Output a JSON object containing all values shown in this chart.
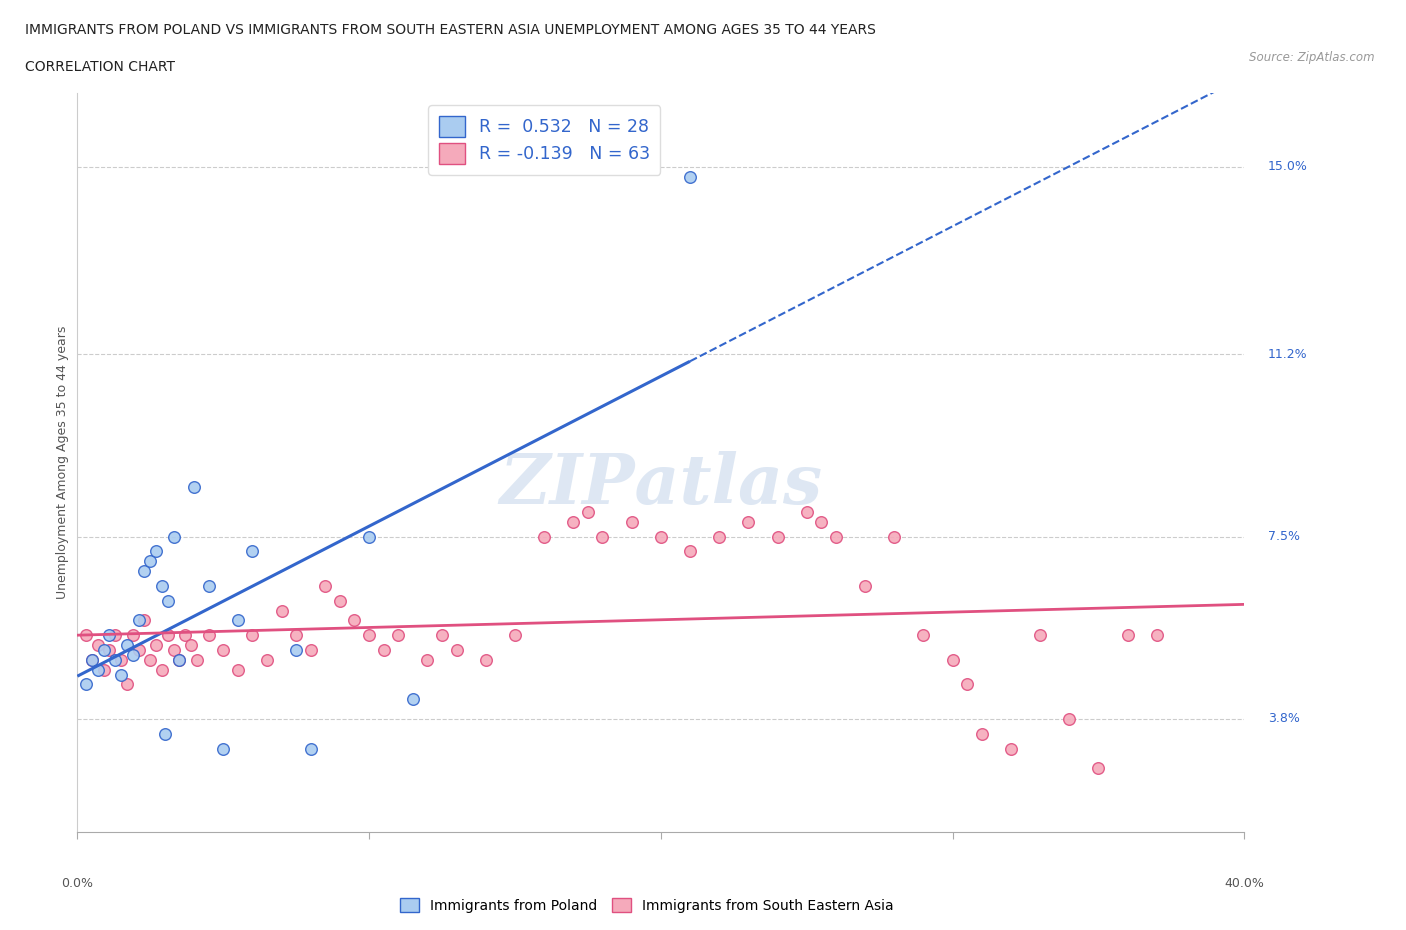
{
  "title_line1": "IMMIGRANTS FROM POLAND VS IMMIGRANTS FROM SOUTH EASTERN ASIA UNEMPLOYMENT AMONG AGES 35 TO 44 YEARS",
  "title_line2": "CORRELATION CHART",
  "source": "Source: ZipAtlas.com",
  "ylabel": "Unemployment Among Ages 35 to 44 years",
  "yticks": [
    3.8,
    7.5,
    11.2,
    15.0
  ],
  "xlim": [
    0.0,
    40.0
  ],
  "ylim": [
    1.5,
    16.5
  ],
  "watermark": "ZIPatlas",
  "poland_color": "#aaccf0",
  "sea_color": "#f5aabb",
  "poland_line_color": "#3366cc",
  "sea_line_color": "#e05080",
  "poland_scatter": [
    [
      0.3,
      4.5
    ],
    [
      0.5,
      5.0
    ],
    [
      0.7,
      4.8
    ],
    [
      0.9,
      5.2
    ],
    [
      1.1,
      5.5
    ],
    [
      1.3,
      5.0
    ],
    [
      1.5,
      4.7
    ],
    [
      1.7,
      5.3
    ],
    [
      1.9,
      5.1
    ],
    [
      2.1,
      5.8
    ],
    [
      2.3,
      6.8
    ],
    [
      2.5,
      7.0
    ],
    [
      2.7,
      7.2
    ],
    [
      2.9,
      6.5
    ],
    [
      3.1,
      6.2
    ],
    [
      3.3,
      7.5
    ],
    [
      3.5,
      5.0
    ],
    [
      4.0,
      8.5
    ],
    [
      4.5,
      6.5
    ],
    [
      5.5,
      5.8
    ],
    [
      6.0,
      7.2
    ],
    [
      7.5,
      5.2
    ],
    [
      8.0,
      3.2
    ],
    [
      11.5,
      4.2
    ],
    [
      3.0,
      3.5
    ],
    [
      5.0,
      3.2
    ],
    [
      10.0,
      7.5
    ],
    [
      21.0,
      14.8
    ]
  ],
  "sea_scatter": [
    [
      0.3,
      5.5
    ],
    [
      0.5,
      5.0
    ],
    [
      0.7,
      5.3
    ],
    [
      0.9,
      4.8
    ],
    [
      1.1,
      5.2
    ],
    [
      1.3,
      5.5
    ],
    [
      1.5,
      5.0
    ],
    [
      1.7,
      4.5
    ],
    [
      1.9,
      5.5
    ],
    [
      2.1,
      5.2
    ],
    [
      2.3,
      5.8
    ],
    [
      2.5,
      5.0
    ],
    [
      2.7,
      5.3
    ],
    [
      2.9,
      4.8
    ],
    [
      3.1,
      5.5
    ],
    [
      3.3,
      5.2
    ],
    [
      3.5,
      5.0
    ],
    [
      3.7,
      5.5
    ],
    [
      3.9,
      5.3
    ],
    [
      4.1,
      5.0
    ],
    [
      4.5,
      5.5
    ],
    [
      5.0,
      5.2
    ],
    [
      5.5,
      4.8
    ],
    [
      6.0,
      5.5
    ],
    [
      6.5,
      5.0
    ],
    [
      7.0,
      6.0
    ],
    [
      7.5,
      5.5
    ],
    [
      8.0,
      5.2
    ],
    [
      8.5,
      6.5
    ],
    [
      9.0,
      6.2
    ],
    [
      9.5,
      5.8
    ],
    [
      10.0,
      5.5
    ],
    [
      10.5,
      5.2
    ],
    [
      11.0,
      5.5
    ],
    [
      12.0,
      5.0
    ],
    [
      12.5,
      5.5
    ],
    [
      13.0,
      5.2
    ],
    [
      14.0,
      5.0
    ],
    [
      15.0,
      5.5
    ],
    [
      16.0,
      7.5
    ],
    [
      17.0,
      7.8
    ],
    [
      17.5,
      8.0
    ],
    [
      18.0,
      7.5
    ],
    [
      19.0,
      7.8
    ],
    [
      20.0,
      7.5
    ],
    [
      21.0,
      7.2
    ],
    [
      22.0,
      7.5
    ],
    [
      23.0,
      7.8
    ],
    [
      24.0,
      7.5
    ],
    [
      25.0,
      8.0
    ],
    [
      25.5,
      7.8
    ],
    [
      26.0,
      7.5
    ],
    [
      27.0,
      6.5
    ],
    [
      28.0,
      7.5
    ],
    [
      29.0,
      5.5
    ],
    [
      30.0,
      5.0
    ],
    [
      30.5,
      4.5
    ],
    [
      31.0,
      3.5
    ],
    [
      32.0,
      3.2
    ],
    [
      33.0,
      5.5
    ],
    [
      34.0,
      3.8
    ],
    [
      35.0,
      2.8
    ],
    [
      36.0,
      5.5
    ],
    [
      37.0,
      5.5
    ]
  ]
}
